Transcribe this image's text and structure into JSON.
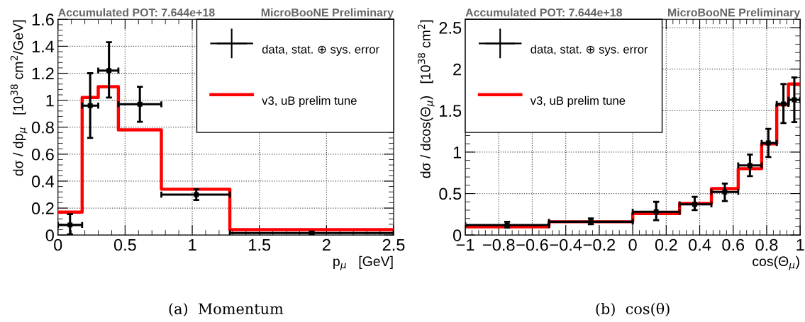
{
  "chart_data": [
    {
      "type": "step",
      "title": "Accumulated POT: 7.644e+18",
      "subtitle": "MicroBooNE Preliminary",
      "xlabel": "p$_{μ}$   [GeV]",
      "ylabel": "dσ / dp$_{μ}$   [10$^{38}$ cm$^{2}$/GeV]",
      "annotations": [
        "(a)  Momentum"
      ],
      "xlim": [
        0,
        2.5
      ],
      "xticks": [
        0,
        0.5,
        1,
        1.5,
        2,
        2.5
      ],
      "ylim": [
        0,
        1.6
      ],
      "yticks": [
        0,
        0.2,
        0.4,
        0.6,
        0.8,
        1,
        1.2,
        1.4,
        1.6
      ],
      "grid": true,
      "legend": "top right",
      "series": [
        {
          "name": "data, stat. ⊕ sys. error",
          "type": "scatter",
          "marker": "square",
          "color": "#000000",
          "x": [
            0.09,
            0.24,
            0.38,
            0.61,
            1.03,
            1.89
          ],
          "values": [
            0.075,
            0.96,
            1.22,
            0.97,
            0.3,
            0.015
          ],
          "errors": [
            [
              0.005,
              0.155
            ],
            [
              0.72,
              1.2
            ],
            [
              1.02,
              1.43
            ],
            [
              0.84,
              1.1
            ],
            [
              0.26,
              0.34
            ],
            [
              0.005,
              0.025
            ]
          ],
          "xerrors": [
            [
              0,
              0.18
            ],
            [
              0.18,
              0.3
            ],
            [
              0.3,
              0.45
            ],
            [
              0.45,
              0.77
            ],
            [
              0.77,
              1.28
            ],
            [
              1.28,
              2.5
            ]
          ]
        },
        {
          "name": "v3, uB prelim tune",
          "color": "#ff0000",
          "x": [
            0,
            0.18,
            0.3,
            0.45,
            0.77,
            1.28,
            2.5
          ],
          "values": [
            0.17,
            1.02,
            1.1,
            0.78,
            0.34,
            0.04,
            0.04
          ]
        }
      ]
    },
    {
      "type": "step",
      "title": "Accumulated POT: 7.644e+18",
      "subtitle": "MicroBooNE Preliminary",
      "xlabel": "cos(Θ$_{μ}$)",
      "ylabel": "dσ / dcos(Θ$_{μ}$)   [10$^{38}$ cm$^{2}$]",
      "annotations": [
        "(b)  cos(θ)"
      ],
      "xlim": [
        -1,
        1
      ],
      "xticks": [
        {
          "value": -1,
          "label": "−1"
        },
        {
          "value": -0.8,
          "label": "−0.8"
        },
        {
          "value": -0.6,
          "label": "−0.6"
        },
        {
          "value": -0.4,
          "label": "−0.4"
        },
        {
          "value": -0.2,
          "label": "−0.2"
        },
        0,
        0.2,
        0.4,
        0.6,
        0.8,
        1
      ],
      "ylim": [
        0,
        2.6
      ],
      "yticks": [
        0,
        0.5,
        1,
        1.5,
        2,
        2.5
      ],
      "grid": true,
      "legend": "top left",
      "series": [
        {
          "name": "data, stat. ⊕ sys. error",
          "type": "scatter",
          "marker": "square",
          "color": "#000000",
          "x": [
            -0.75,
            -0.25,
            0.14,
            0.37,
            0.55,
            0.7,
            0.81,
            0.9,
            0.965
          ],
          "values": [
            0.12,
            0.16,
            0.28,
            0.37,
            0.52,
            0.84,
            1.11,
            1.58,
            1.63
          ],
          "errors": [
            [
              0.09,
              0.16
            ],
            [
              0.13,
              0.2
            ],
            [
              0.18,
              0.4
            ],
            [
              0.3,
              0.46
            ],
            [
              0.41,
              0.62
            ],
            [
              0.71,
              0.97
            ],
            [
              0.94,
              1.28
            ],
            [
              1.35,
              1.82
            ],
            [
              1.36,
              1.9
            ]
          ],
          "xerrors": [
            [
              -1,
              -0.5
            ],
            [
              -0.5,
              0
            ],
            [
              0,
              0.28
            ],
            [
              0.28,
              0.47
            ],
            [
              0.47,
              0.63
            ],
            [
              0.63,
              0.77
            ],
            [
              0.77,
              0.86
            ],
            [
              0.86,
              0.93
            ],
            [
              0.93,
              1
            ]
          ]
        },
        {
          "name": "v3, uB prelim tune",
          "color": "#ff0000",
          "x": [
            -1,
            -0.5,
            0,
            0.28,
            0.47,
            0.63,
            0.77,
            0.86,
            0.93,
            1
          ],
          "values": [
            0.1,
            0.16,
            0.26,
            0.38,
            0.56,
            0.8,
            1.1,
            1.57,
            1.82,
            1.82
          ]
        }
      ]
    }
  ]
}
